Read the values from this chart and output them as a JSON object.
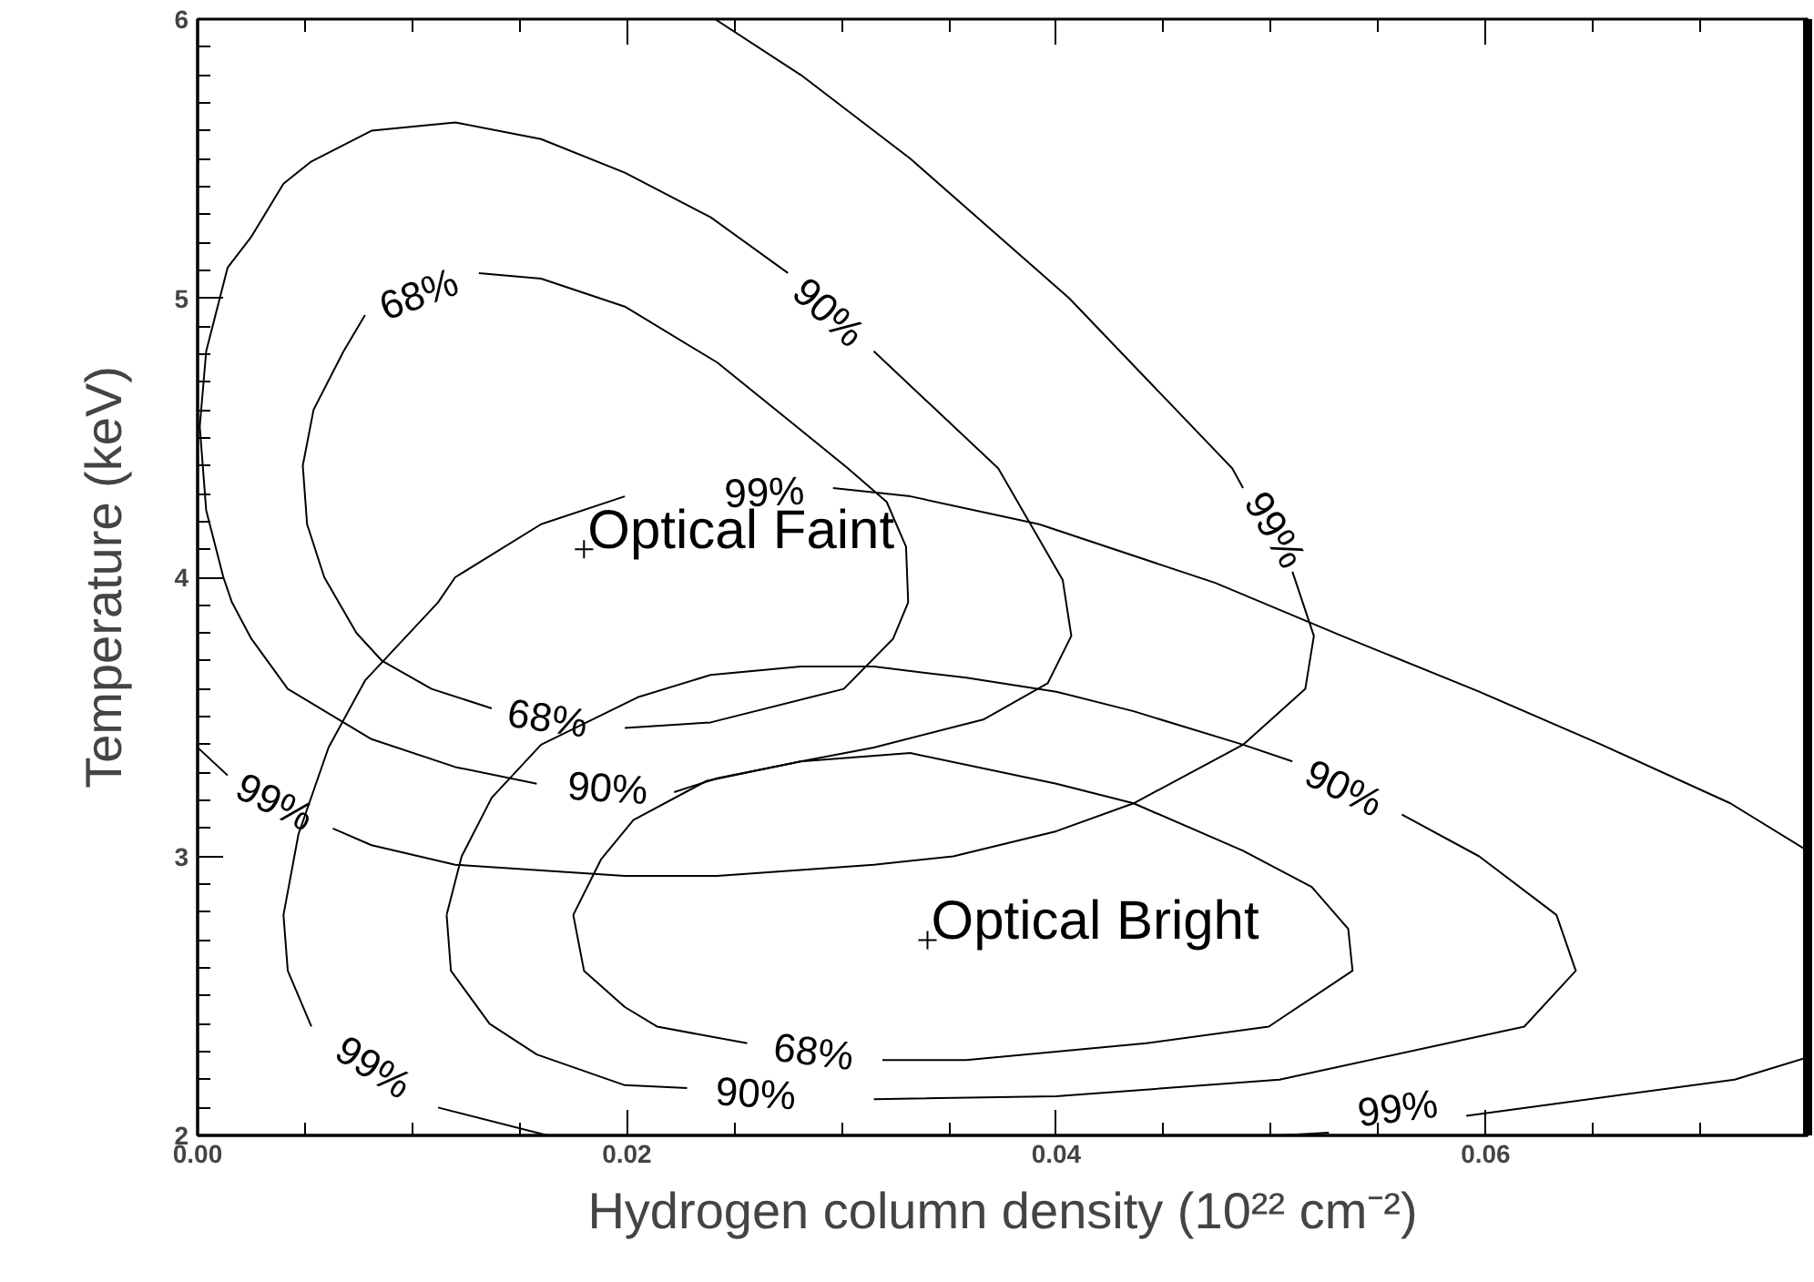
{
  "chart_data": {
    "type": "line",
    "xlabel": "Hydrogen column density (10²² cm⁻²)",
    "ylabel": "Temperature (keV)",
    "xlim": [
      0,
      0.075
    ],
    "ylim": [
      2,
      6
    ],
    "xticks": [
      {
        "value": 0,
        "label": "0.00"
      },
      {
        "value": 0.005,
        "label": null
      },
      {
        "value": 0.01,
        "label": null
      },
      {
        "value": 0.015,
        "label": null
      },
      {
        "value": 0.02,
        "label": "0.02"
      },
      {
        "value": 0.025,
        "label": null
      },
      {
        "value": 0.03,
        "label": null
      },
      {
        "value": 0.035,
        "label": null
      },
      {
        "value": 0.04,
        "label": "0.04"
      },
      {
        "value": 0.045,
        "label": null
      },
      {
        "value": 0.05,
        "label": null
      },
      {
        "value": 0.055,
        "label": null
      },
      {
        "value": 0.06,
        "label": "0.06"
      },
      {
        "value": 0.065,
        "label": null
      },
      {
        "value": 0.07,
        "label": null
      }
    ],
    "yticks": [
      2,
      {
        "value": 2.1,
        "label": null
      },
      {
        "value": 2.2,
        "label": null
      },
      {
        "value": 2.3,
        "label": null
      },
      {
        "value": 2.4,
        "label": null
      },
      {
        "value": 2.5,
        "label": null
      },
      {
        "value": 2.6,
        "label": null
      },
      {
        "value": 2.7,
        "label": null
      },
      {
        "value": 2.8,
        "label": null
      },
      {
        "value": 2.9,
        "label": null
      },
      3,
      {
        "value": 3.1,
        "label": null
      },
      {
        "value": 3.2,
        "label": null
      },
      {
        "value": 3.3,
        "label": null
      },
      {
        "value": 3.4,
        "label": null
      },
      {
        "value": 3.5,
        "label": null
      },
      {
        "value": 3.6,
        "label": null
      },
      {
        "value": 3.7,
        "label": null
      },
      {
        "value": 3.8,
        "label": null
      },
      {
        "value": 3.9,
        "label": null
      },
      4,
      {
        "value": 4.1,
        "label": null
      },
      {
        "value": 4.2,
        "label": null
      },
      {
        "value": 4.3,
        "label": null
      },
      {
        "value": 4.4,
        "label": null
      },
      {
        "value": 4.5,
        "label": null
      },
      {
        "value": 4.6,
        "label": null
      },
      {
        "value": 4.7,
        "label": null
      },
      {
        "value": 4.8,
        "label": null
      },
      {
        "value": 4.9,
        "label": null
      },
      5,
      {
        "value": 5.1,
        "label": null
      },
      {
        "value": 5.2,
        "label": null
      },
      {
        "value": 5.3,
        "label": null
      },
      {
        "value": 5.4,
        "label": null
      },
      {
        "value": 5.5,
        "label": null
      },
      {
        "value": 5.6,
        "label": null
      },
      {
        "value": 5.7,
        "label": null
      },
      {
        "value": 5.8,
        "label": null
      },
      {
        "value": 5.9,
        "label": null
      },
      6
    ],
    "grid": false,
    "marker": "none",
    "line_style": "solid",
    "series": [
      {
        "color": "#000000",
        "x": [
          0.0078,
          0.0068,
          0.0054,
          0.0049,
          0.0051,
          0.0059,
          0.0074,
          0.0086,
          0.0109,
          0.0137,
          0.0163,
          0.0199,
          0.0239,
          0.0301,
          0.0324,
          0.0331,
          0.033,
          0.0321,
          0.0303,
          0.0279,
          0.0242,
          0.0199,
          0.016,
          0.0131,
          0.0103,
          0.0078
        ],
        "values": [
          4.94,
          4.81,
          4.6,
          4.4,
          4.19,
          4.0,
          3.8,
          3.7,
          3.6,
          3.53,
          null,
          3.46,
          3.48,
          3.6,
          3.78,
          3.91,
          4.11,
          4.27,
          4.39,
          4.54,
          4.77,
          4.97,
          5.07,
          5.09,
          null,
          4.94
        ]
      },
      {
        "color": "#000000",
        "x": [
          0.004,
          0.0053,
          0.0081,
          0.012,
          0.016,
          0.0199,
          0.0239,
          0.0275,
          0.0294,
          0.0315,
          0.0373,
          0.0403,
          0.0407,
          0.0396,
          0.0366,
          0.0315,
          0.0281,
          0.0242,
          0.0222,
          0.0191,
          0.0158,
          0.012,
          0.0081,
          0.0042,
          0.0025,
          0.0016,
          0.0012,
          0.0004,
          0.0001,
          0.0004,
          0.0014,
          0.0025,
          0.004
        ],
        "values": [
          5.41,
          5.49,
          5.6,
          5.63,
          5.57,
          5.45,
          5.29,
          5.09,
          null,
          4.81,
          4.39,
          3.99,
          3.79,
          3.62,
          3.49,
          3.39,
          3.34,
          3.28,
          3.23,
          null,
          3.26,
          3.32,
          3.42,
          3.6,
          3.78,
          3.91,
          4.0,
          4.24,
          4.54,
          4.81,
          5.11,
          5.22,
          5.41
        ]
      },
      {
        "color": "#000000",
        "x": [
          0.0241,
          0.0281,
          0.0332,
          0.0406,
          0.0482,
          0.0487,
          0.0502,
          0.051,
          0.052,
          0.0516,
          0.0487,
          0.0436,
          0.04,
          0.0352,
          0.0315,
          0.0242,
          0.0199,
          0.012,
          0.0081,
          0.0063,
          0.0036,
          0.0014,
          0.0
        ],
        "values": [
          6.0,
          5.8,
          5.5,
          5.0,
          4.39,
          4.32,
          null,
          4.02,
          3.79,
          3.6,
          3.4,
          3.19,
          3.09,
          3.0,
          2.97,
          2.93,
          2.93,
          2.97,
          3.04,
          3.1,
          null,
          3.29,
          3.39
        ]
      },
      {
        "color": "#000000",
        "x": [
          0.075,
          0.0714,
          0.0654,
          0.0597,
          0.0533,
          0.0474,
          0.0392,
          0.0332,
          0.0296,
          0.0264,
          0.0199,
          0.016,
          0.012,
          0.0112,
          0.0078,
          0.0061,
          0.0047,
          0.004,
          0.0042,
          0.0053,
          0.0082,
          0.0112,
          0.0163
        ],
        "values": [
          3.02,
          3.19,
          3.4,
          3.59,
          3.79,
          3.98,
          4.19,
          4.29,
          4.32,
          null,
          4.29,
          4.19,
          4.0,
          3.91,
          3.63,
          3.39,
          3.08,
          2.79,
          2.59,
          2.39,
          null,
          2.1,
          2.0
        ]
      },
      {
        "color": "#000000",
        "x": [
          0.0504,
          0.0527,
          0.0559,
          0.0591,
          0.0716,
          0.075
        ],
        "values": [
          2.0,
          2.01,
          null,
          2.07,
          2.2,
          2.28
        ]
      },
      {
        "color": "#000000",
        "x": [
          0.0175,
          0.0188,
          0.0203,
          0.0237,
          0.0281,
          0.0332,
          0.04,
          0.0436,
          0.0487,
          0.0519,
          0.0536,
          0.0538,
          0.0499,
          0.0442,
          0.0358,
          0.0319,
          0.0287,
          0.0256,
          0.0214,
          0.0199,
          0.018,
          0.0175
        ],
        "values": [
          2.79,
          2.99,
          3.13,
          3.27,
          3.34,
          3.37,
          3.26,
          3.19,
          3.02,
          2.89,
          2.74,
          2.59,
          2.39,
          2.33,
          2.27,
          2.27,
          null,
          2.33,
          2.39,
          2.46,
          2.59,
          2.79
        ]
      },
      {
        "color": "#000000",
        "x": [
          0.0116,
          0.0118,
          0.0136,
          0.0158,
          0.0199,
          0.0228,
          0.026,
          0.0315,
          0.04,
          0.0504,
          0.0618,
          0.0642,
          0.0633,
          0.0597,
          0.0561,
          0.0534,
          0.051,
          0.0487,
          0.0436,
          0.04,
          0.0358,
          0.0315,
          0.0281,
          0.0239,
          0.0205,
          0.016,
          0.0137,
          0.0123,
          0.0116
        ],
        "values": [
          2.79,
          2.59,
          2.4,
          2.29,
          2.18,
          2.17,
          null,
          2.13,
          2.14,
          2.2,
          2.39,
          2.59,
          2.79,
          3.0,
          3.15,
          null,
          3.34,
          3.4,
          3.52,
          3.59,
          3.64,
          3.68,
          3.68,
          3.65,
          3.57,
          3.4,
          3.21,
          3.0,
          2.79
        ]
      },
      {
        "type": "scatter",
        "color": "#000000",
        "marker": "cross",
        "x": [
          0.018,
          0.034
        ],
        "values": [
          4.1,
          2.7
        ]
      }
    ],
    "annotations": [
      "68%",
      "68%",
      "90%",
      "90%",
      "99%",
      "99%",
      "99%",
      "99%",
      "99%",
      "68%",
      "90%",
      "90%",
      {
        "text": "Optical Faint",
        "x": 0.018,
        "y": 4.1
      },
      {
        "text": "Optical Bright",
        "x": 0.034,
        "y": 2.7
      }
    ]
  }
}
